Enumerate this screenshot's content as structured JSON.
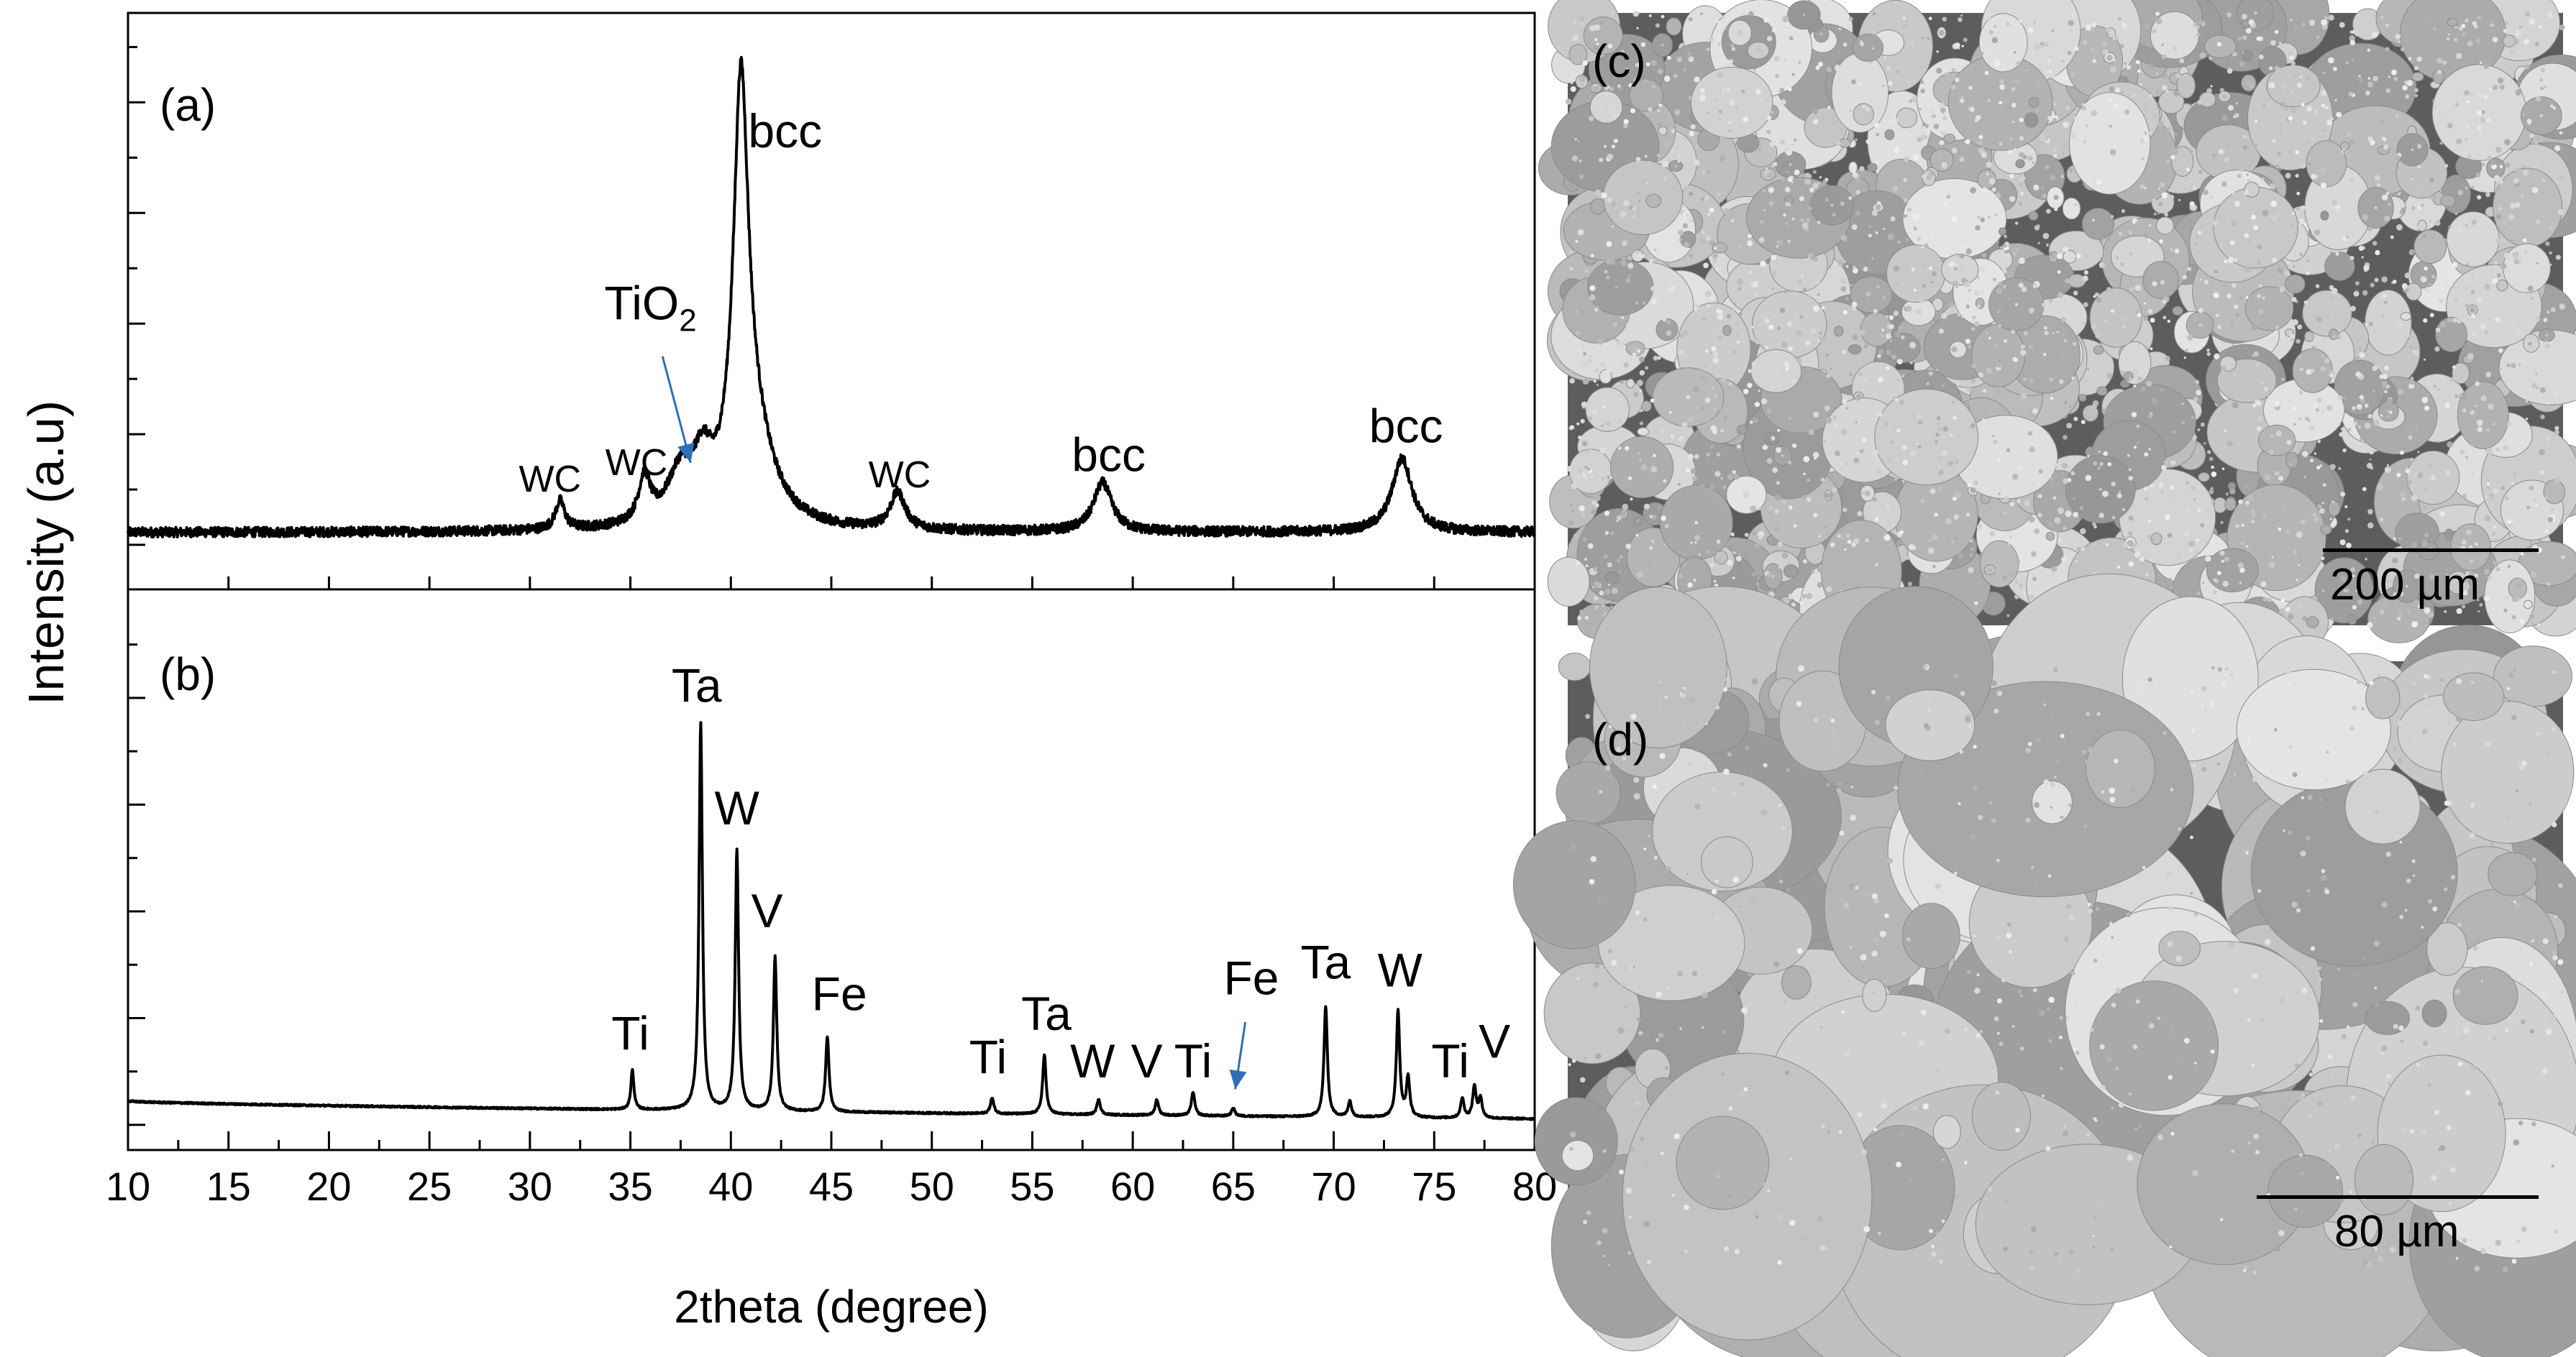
{
  "chart_data": {
    "type": "line",
    "xlabel": "2theta (degree)",
    "ylabel": "Intensity (a.u)",
    "xlim": [
      10,
      80
    ],
    "xticks": [
      10,
      15,
      20,
      25,
      30,
      35,
      40,
      45,
      50,
      55,
      60,
      65,
      70,
      75,
      80
    ],
    "grid": false,
    "panels": [
      {
        "label": "(a)",
        "baseline": 0.03,
        "noise": 0.012,
        "peaks": [
          {
            "x": 31.5,
            "height": 0.07,
            "width": 0.28
          },
          {
            "x": 35.7,
            "height": 0.11,
            "width": 0.35
          },
          {
            "x": 37.5,
            "height": 0.12,
            "width": 0.8
          },
          {
            "x": 38.6,
            "height": 0.12,
            "width": 0.55
          },
          {
            "x": 40.5,
            "height": 0.97,
            "width": 0.45
          },
          {
            "x": 41.1,
            "height": 0.2,
            "width": 1.2
          },
          {
            "x": 48.3,
            "height": 0.09,
            "width": 0.45
          },
          {
            "x": 58.5,
            "height": 0.12,
            "width": 0.55
          },
          {
            "x": 73.4,
            "height": 0.18,
            "width": 0.6
          }
        ],
        "annotations": [
          {
            "text": "bcc",
            "x": 42.7,
            "y": 0.97
          },
          {
            "text": "WC",
            "x": 31.0,
            "y": 0.13
          },
          {
            "text": "WC",
            "x": 35.3,
            "y": 0.17
          },
          {
            "text": "WC",
            "x": 48.4,
            "y": 0.14
          },
          {
            "text": "bcc",
            "x": 58.8,
            "y": 0.18
          },
          {
            "text": "bcc",
            "x": 73.6,
            "y": 0.25
          }
        ],
        "arrow_annotation": {
          "text": "TiO",
          "subscript": "2",
          "x": 36.0,
          "y": 0.55,
          "arrow_from": [
            36.6,
            0.46
          ],
          "arrow_to": [
            38.0,
            0.2
          ]
        }
      },
      {
        "label": "(b)",
        "baseline_start": 0.06,
        "baseline_end": 0.015,
        "noise": 0.002,
        "peaks": [
          {
            "x": 35.1,
            "height": 0.1,
            "width": 0.09
          },
          {
            "x": 38.5,
            "height": 0.98,
            "width": 0.1
          },
          {
            "x": 40.3,
            "height": 0.66,
            "width": 0.1
          },
          {
            "x": 42.2,
            "height": 0.39,
            "width": 0.1
          },
          {
            "x": 44.8,
            "height": 0.19,
            "width": 0.1
          },
          {
            "x": 53.0,
            "height": 0.04,
            "width": 0.1
          },
          {
            "x": 55.6,
            "height": 0.15,
            "width": 0.1
          },
          {
            "x": 58.3,
            "height": 0.04,
            "width": 0.1
          },
          {
            "x": 61.2,
            "height": 0.04,
            "width": 0.1
          },
          {
            "x": 63.0,
            "height": 0.06,
            "width": 0.1
          },
          {
            "x": 65.0,
            "height": 0.02,
            "width": 0.1
          },
          {
            "x": 69.6,
            "height": 0.28,
            "width": 0.1
          },
          {
            "x": 70.8,
            "height": 0.04,
            "width": 0.1
          },
          {
            "x": 73.2,
            "height": 0.27,
            "width": 0.1
          },
          {
            "x": 73.7,
            "height": 0.1,
            "width": 0.1
          },
          {
            "x": 76.4,
            "height": 0.05,
            "width": 0.1
          },
          {
            "x": 77.0,
            "height": 0.08,
            "width": 0.1
          },
          {
            "x": 77.3,
            "height": 0.05,
            "width": 0.1
          }
        ],
        "annotations": [
          {
            "text": "Ta",
            "x": 38.3,
            "y": 1.07
          },
          {
            "text": "W",
            "x": 40.3,
            "y": 0.76
          },
          {
            "text": "V",
            "x": 41.8,
            "y": 0.5
          },
          {
            "text": "Fe",
            "x": 45.4,
            "y": 0.29
          },
          {
            "text": "Ti",
            "x": 35.0,
            "y": 0.19
          },
          {
            "text": "Ti",
            "x": 52.8,
            "y": 0.13
          },
          {
            "text": "Ta",
            "x": 55.7,
            "y": 0.24
          },
          {
            "text": "W",
            "x": 58.0,
            "y": 0.12
          },
          {
            "text": "V",
            "x": 60.7,
            "y": 0.12
          },
          {
            "text": "Ti",
            "x": 63.0,
            "y": 0.12
          },
          {
            "text": "Ta",
            "x": 69.6,
            "y": 0.37
          },
          {
            "text": "W",
            "x": 73.3,
            "y": 0.35
          },
          {
            "text": "Ti",
            "x": 75.8,
            "y": 0.12
          },
          {
            "text": "V",
            "x": 78.0,
            "y": 0.17
          }
        ],
        "arrow_annotation": {
          "text": "Fe",
          "x": 65.9,
          "y": 0.33,
          "arrow_from": [
            65.6,
            0.26
          ],
          "arrow_to": [
            65.1,
            0.09
          ]
        }
      }
    ]
  },
  "images": [
    {
      "label": "(c)",
      "scale_bar": "200 µm"
    },
    {
      "label": "(d)",
      "scale_bar": "80 µm"
    }
  ]
}
